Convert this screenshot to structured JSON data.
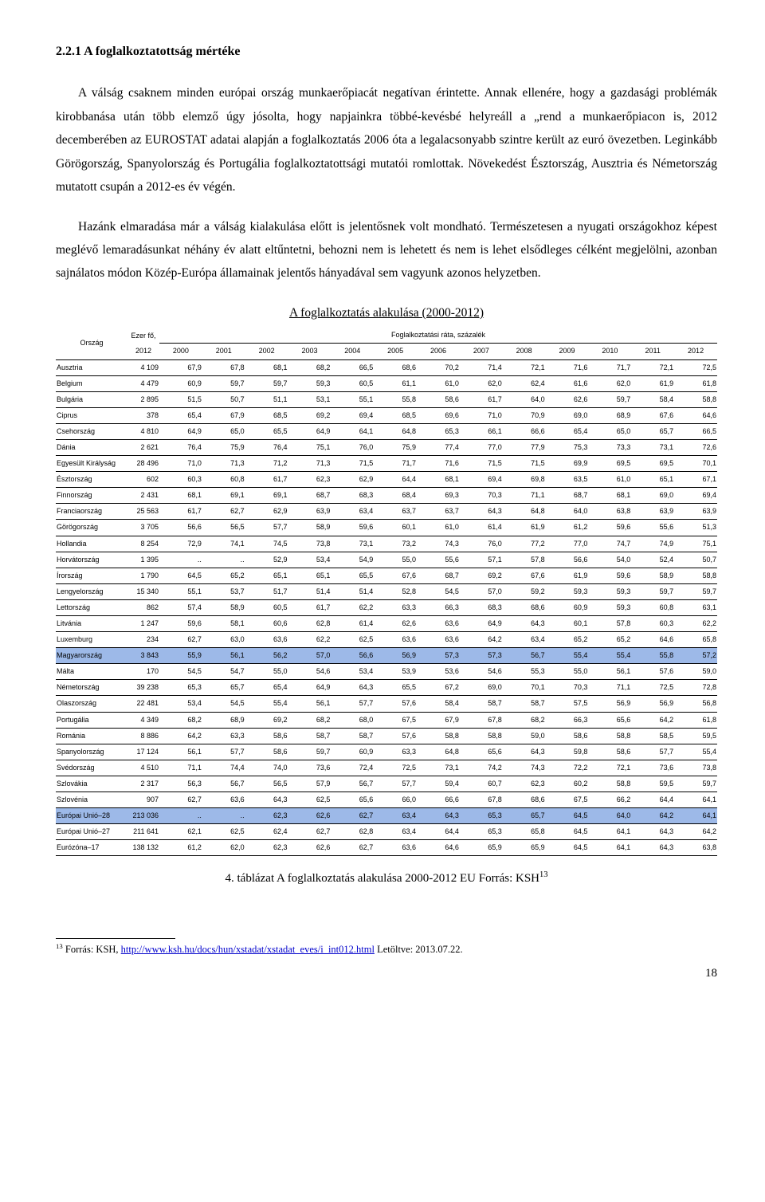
{
  "heading": "2.2.1   A foglalkoztatottság mértéke",
  "para1": "A válság csaknem minden európai ország munkaerőpiacát negatívan érintette. Annak ellenére, hogy a gazdasági problémák kirobbanása után több elemző úgy jósolta, hogy napjainkra többé-kevésbé helyreáll a „rend a munkaerőpiacon is, 2012 decemberében az EUROSTAT adatai alapján a foglalkoztatás 2006 óta a legalacsonyabb szintre került az euró övezetben. Leginkább Görögország, Spanyolország és Portugália foglalkoztatottsági mutatói romlottak. Növekedést Észtország, Ausztria és Németország mutatott csupán a 2012-es év végén.",
  "para2": "Hazánk elmaradása már a válság kialakulása előtt is jelentősnek volt mondható. Természetesen a nyugati országokhoz képest meglévő lemaradásunkat néhány év alatt eltűntetni, behozni nem is lehetett és nem is lehet elsődleges célként megjelölni, azonban sajnálatos módon Közép-Európa államainak jelentős hányadával sem vagyunk azonos helyzetben.",
  "table_title": "A foglalkoztatás alakulása (2000-2012)",
  "table_header": {
    "country_label": "Ország",
    "pop_label1": "Ezer fő,",
    "pop_label2": "2012",
    "rate_label": "Foglalkoztatási ráta, százalék",
    "years": [
      "2000",
      "2001",
      "2002",
      "2003",
      "2004",
      "2005",
      "2006",
      "2007",
      "2008",
      "2009",
      "2010",
      "2011",
      "2012"
    ]
  },
  "rows": [
    {
      "c": "Ausztria",
      "pop": "4 109",
      "v": [
        "67,9",
        "67,8",
        "68,1",
        "68,2",
        "66,5",
        "68,6",
        "70,2",
        "71,4",
        "72,1",
        "71,6",
        "71,7",
        "72,1",
        "72,5"
      ]
    },
    {
      "c": "Belgium",
      "pop": "4 479",
      "v": [
        "60,9",
        "59,7",
        "59,7",
        "59,3",
        "60,5",
        "61,1",
        "61,0",
        "62,0",
        "62,4",
        "61,6",
        "62,0",
        "61,9",
        "61,8"
      ]
    },
    {
      "c": "Bulgária",
      "pop": "2 895",
      "v": [
        "51,5",
        "50,7",
        "51,1",
        "53,1",
        "55,1",
        "55,8",
        "58,6",
        "61,7",
        "64,0",
        "62,6",
        "59,7",
        "58,4",
        "58,8"
      ]
    },
    {
      "c": "Ciprus",
      "pop": "378",
      "v": [
        "65,4",
        "67,9",
        "68,5",
        "69,2",
        "69,4",
        "68,5",
        "69,6",
        "71,0",
        "70,9",
        "69,0",
        "68,9",
        "67,6",
        "64,6"
      ]
    },
    {
      "c": "Csehország",
      "pop": "4 810",
      "v": [
        "64,9",
        "65,0",
        "65,5",
        "64,9",
        "64,1",
        "64,8",
        "65,3",
        "66,1",
        "66,6",
        "65,4",
        "65,0",
        "65,7",
        "66,5"
      ]
    },
    {
      "c": "Dánia",
      "pop": "2 621",
      "v": [
        "76,4",
        "75,9",
        "76,4",
        "75,1",
        "76,0",
        "75,9",
        "77,4",
        "77,0",
        "77,9",
        "75,3",
        "73,3",
        "73,1",
        "72,6"
      ]
    },
    {
      "c": "Egyesült Királyság",
      "pop": "28 496",
      "v": [
        "71,0",
        "71,3",
        "71,2",
        "71,3",
        "71,5",
        "71,7",
        "71,6",
        "71,5",
        "71,5",
        "69,9",
        "69,5",
        "69,5",
        "70,1"
      ]
    },
    {
      "c": "Észtország",
      "pop": "602",
      "v": [
        "60,3",
        "60,8",
        "61,7",
        "62,3",
        "62,9",
        "64,4",
        "68,1",
        "69,4",
        "69,8",
        "63,5",
        "61,0",
        "65,1",
        "67,1"
      ]
    },
    {
      "c": "Finnország",
      "pop": "2 431",
      "v": [
        "68,1",
        "69,1",
        "69,1",
        "68,7",
        "68,3",
        "68,4",
        "69,3",
        "70,3",
        "71,1",
        "68,7",
        "68,1",
        "69,0",
        "69,4"
      ]
    },
    {
      "c": "Franciaország",
      "pop": "25 563",
      "v": [
        "61,7",
        "62,7",
        "62,9",
        "63,9",
        "63,4",
        "63,7",
        "63,7",
        "64,3",
        "64,8",
        "64,0",
        "63,8",
        "63,9",
        "63,9"
      ]
    },
    {
      "c": "Görögország",
      "pop": "3 705",
      "v": [
        "56,6",
        "56,5",
        "57,7",
        "58,9",
        "59,6",
        "60,1",
        "61,0",
        "61,4",
        "61,9",
        "61,2",
        "59,6",
        "55,6",
        "51,3"
      ]
    },
    {
      "c": "Hollandia",
      "pop": "8 254",
      "v": [
        "72,9",
        "74,1",
        "74,5",
        "73,8",
        "73,1",
        "73,2",
        "74,3",
        "76,0",
        "77,2",
        "77,0",
        "74,7",
        "74,9",
        "75,1"
      ]
    },
    {
      "c": "Horvátország",
      "pop": "1 395",
      "v": [
        "..",
        "..",
        "52,9",
        "53,4",
        "54,9",
        "55,0",
        "55,6",
        "57,1",
        "57,8",
        "56,6",
        "54,0",
        "52,4",
        "50,7"
      ]
    },
    {
      "c": "Írország",
      "pop": "1 790",
      "v": [
        "64,5",
        "65,2",
        "65,1",
        "65,1",
        "65,5",
        "67,6",
        "68,7",
        "69,2",
        "67,6",
        "61,9",
        "59,6",
        "58,9",
        "58,8"
      ]
    },
    {
      "c": "Lengyelország",
      "pop": "15 340",
      "v": [
        "55,1",
        "53,7",
        "51,7",
        "51,4",
        "51,4",
        "52,8",
        "54,5",
        "57,0",
        "59,2",
        "59,3",
        "59,3",
        "59,7",
        "59,7"
      ]
    },
    {
      "c": "Lettország",
      "pop": "862",
      "v": [
        "57,4",
        "58,9",
        "60,5",
        "61,7",
        "62,2",
        "63,3",
        "66,3",
        "68,3",
        "68,6",
        "60,9",
        "59,3",
        "60,8",
        "63,1"
      ]
    },
    {
      "c": "Litvánia",
      "pop": "1 247",
      "v": [
        "59,6",
        "58,1",
        "60,6",
        "62,8",
        "61,4",
        "62,6",
        "63,6",
        "64,9",
        "64,3",
        "60,1",
        "57,8",
        "60,3",
        "62,2"
      ]
    },
    {
      "c": "Luxemburg",
      "pop": "234",
      "v": [
        "62,7",
        "63,0",
        "63,6",
        "62,2",
        "62,5",
        "63,6",
        "63,6",
        "64,2",
        "63,4",
        "65,2",
        "65,2",
        "64,6",
        "65,8"
      ]
    },
    {
      "c": "Magyarország",
      "pop": "3 843",
      "hl": true,
      "v": [
        "55,9",
        "56,1",
        "56,2",
        "57,0",
        "56,6",
        "56,9",
        "57,3",
        "57,3",
        "56,7",
        "55,4",
        "55,4",
        "55,8",
        "57,2"
      ]
    },
    {
      "c": "Málta",
      "pop": "170",
      "v": [
        "54,5",
        "54,7",
        "55,0",
        "54,6",
        "53,4",
        "53,9",
        "53,6",
        "54,6",
        "55,3",
        "55,0",
        "56,1",
        "57,6",
        "59,0"
      ]
    },
    {
      "c": "Németország",
      "pop": "39 238",
      "v": [
        "65,3",
        "65,7",
        "65,4",
        "64,9",
        "64,3",
        "65,5",
        "67,2",
        "69,0",
        "70,1",
        "70,3",
        "71,1",
        "72,5",
        "72,8"
      ]
    },
    {
      "c": "Olaszország",
      "pop": "22 481",
      "v": [
        "53,4",
        "54,5",
        "55,4",
        "56,1",
        "57,7",
        "57,6",
        "58,4",
        "58,7",
        "58,7",
        "57,5",
        "56,9",
        "56,9",
        "56,8"
      ]
    },
    {
      "c": "Portugália",
      "pop": "4 349",
      "v": [
        "68,2",
        "68,9",
        "69,2",
        "68,2",
        "68,0",
        "67,5",
        "67,9",
        "67,8",
        "68,2",
        "66,3",
        "65,6",
        "64,2",
        "61,8"
      ]
    },
    {
      "c": "Románia",
      "pop": "8 886",
      "v": [
        "64,2",
        "63,3",
        "58,6",
        "58,7",
        "58,7",
        "57,6",
        "58,8",
        "58,8",
        "59,0",
        "58,6",
        "58,8",
        "58,5",
        "59,5"
      ]
    },
    {
      "c": "Spanyolország",
      "pop": "17 124",
      "v": [
        "56,1",
        "57,7",
        "58,6",
        "59,7",
        "60,9",
        "63,3",
        "64,8",
        "65,6",
        "64,3",
        "59,8",
        "58,6",
        "57,7",
        "55,4"
      ]
    },
    {
      "c": "Svédország",
      "pop": "4 510",
      "v": [
        "71,1",
        "74,4",
        "74,0",
        "73,6",
        "72,4",
        "72,5",
        "73,1",
        "74,2",
        "74,3",
        "72,2",
        "72,1",
        "73,6",
        "73,8"
      ]
    },
    {
      "c": "Szlovákia",
      "pop": "2 317",
      "v": [
        "56,3",
        "56,7",
        "56,5",
        "57,9",
        "56,7",
        "57,7",
        "59,4",
        "60,7",
        "62,3",
        "60,2",
        "58,8",
        "59,5",
        "59,7"
      ]
    },
    {
      "c": "Szlovénia",
      "pop": "907",
      "v": [
        "62,7",
        "63,6",
        "64,3",
        "62,5",
        "65,6",
        "66,0",
        "66,6",
        "67,8",
        "68,6",
        "67,5",
        "66,2",
        "64,4",
        "64,1"
      ]
    },
    {
      "c": "Európai Unió–28",
      "pop": "213 036",
      "hl": true,
      "v": [
        "..",
        "..",
        "62,3",
        "62,6",
        "62,7",
        "63,4",
        "64,3",
        "65,3",
        "65,7",
        "64,5",
        "64,0",
        "64,2",
        "64,1"
      ]
    },
    {
      "c": "Európai Unió–27",
      "pop": "211 641",
      "v": [
        "62,1",
        "62,5",
        "62,4",
        "62,7",
        "62,8",
        "63,4",
        "64,4",
        "65,3",
        "65,8",
        "64,5",
        "64,1",
        "64,3",
        "64,2"
      ]
    },
    {
      "c": "Eurózóna–17",
      "pop": "138 132",
      "v": [
        "61,2",
        "62,0",
        "62,3",
        "62,6",
        "62,7",
        "63,6",
        "64,6",
        "65,9",
        "65,9",
        "64,5",
        "64,1",
        "64,3",
        "63,8"
      ]
    }
  ],
  "table_caption": "4. táblázat A foglalkoztatás alakulása 2000-2012 EU Forrás: KSH",
  "footnote_prefix": "Forrás: KSH, ",
  "footnote_link": "http://www.ksh.hu/docs/hun/xstadat/xstadat_eves/i_int012.html",
  "footnote_suffix": " Letöltve: 2013.07.22.",
  "footnote_num": "13",
  "page_num": "18"
}
